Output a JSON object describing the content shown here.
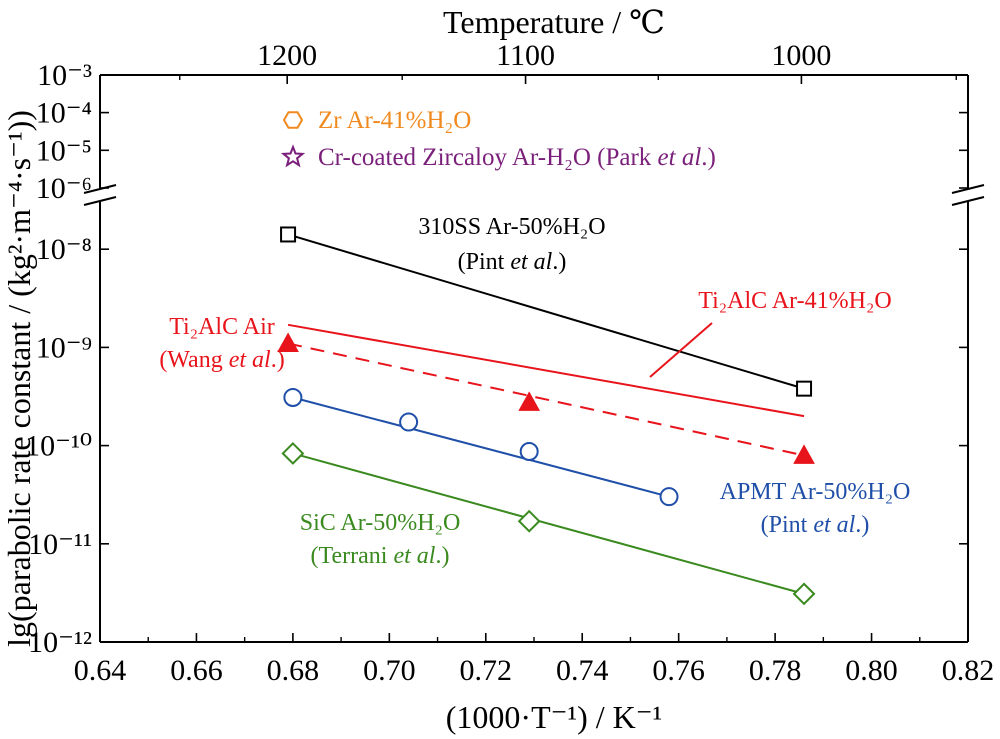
{
  "chart_data": {
    "type": "scatter",
    "title": "",
    "xlabel": "(1000·T⁻¹) / K⁻¹",
    "x2label": "Temperature / ℃",
    "ylabel": "lg(parabolic rate constant / (kg²·m⁻⁴·s⁻¹))",
    "xlim": [
      0.64,
      0.82
    ],
    "x_ticks": [
      "0.64",
      "0.66",
      "0.68",
      "0.70",
      "0.72",
      "0.74",
      "0.76",
      "0.78",
      "0.80",
      "0.82"
    ],
    "x2_ticks": [
      "1200",
      "1100",
      "1000"
    ],
    "y_scale": "log, broken axis",
    "ylim_lower": [
      -12,
      -7.6
    ],
    "ylim_upper": [
      -6,
      -3
    ],
    "y_ticks_lower": [
      "10⁻¹²",
      "10⁻¹¹",
      "10⁻¹⁰",
      "10⁻⁹",
      "10⁻⁸"
    ],
    "y_ticks_upper": [
      "10⁻⁶",
      "10⁻⁵",
      "10⁻⁴",
      "10⁻³"
    ],
    "grid": false,
    "series": [
      {
        "name": "310SS Ar-50%H₂O (Pint et al.)",
        "color": "#000000",
        "marker": "square-open",
        "points": [
          [
            0.679,
            -7.85
          ],
          [
            0.786,
            -9.42
          ]
        ],
        "fit": [
          [
            0.679,
            -7.85
          ],
          [
            0.786,
            -9.42
          ]
        ],
        "line_style": "solid"
      },
      {
        "name": "Ti₂AlC Ar-41%H₂O",
        "color": "#e8141b",
        "marker": "none",
        "fit": [
          [
            0.679,
            -8.77
          ],
          [
            0.786,
            -9.7
          ]
        ],
        "line_style": "solid"
      },
      {
        "name": "Ti₂AlC Air (Wang et al.)",
        "color": "#e8141b",
        "marker": "triangle-filled",
        "points": [
          [
            0.679,
            -8.96
          ],
          [
            0.729,
            -9.56
          ],
          [
            0.786,
            -10.1
          ]
        ],
        "fit": [
          [
            0.679,
            -8.96
          ],
          [
            0.786,
            -10.1
          ]
        ],
        "line_style": "dashed"
      },
      {
        "name": "APMT Ar-50%H₂O (Pint et al.)",
        "color": "#1f4fa8",
        "marker": "circle-open",
        "points": [
          [
            0.68,
            -9.51
          ],
          [
            0.704,
            -9.76
          ],
          [
            0.729,
            -10.06
          ],
          [
            0.758,
            -10.52
          ]
        ],
        "fit": [
          [
            0.68,
            -9.51
          ],
          [
            0.758,
            -10.52
          ]
        ],
        "line_style": "solid"
      },
      {
        "name": "SiC Ar-50%H₂O (Terrani et al.)",
        "color": "#3a8a1f",
        "marker": "diamond-open",
        "points": [
          [
            0.68,
            -10.08
          ],
          [
            0.729,
            -10.77
          ],
          [
            0.786,
            -11.51
          ]
        ],
        "fit": [
          [
            0.68,
            -10.08
          ],
          [
            0.786,
            -11.51
          ]
        ],
        "line_style": "solid"
      }
    ],
    "legend": [
      {
        "symbol": "hexagon-open",
        "color": "#f08a1e",
        "text": "Zr Ar-41%H₂O"
      },
      {
        "symbol": "star-open",
        "color": "#7a1f7a",
        "text_parts": [
          "Cr-coated Zircaloy Ar-H₂O (Park ",
          "et al",
          ".)"
        ]
      }
    ],
    "legend_position": "top-left",
    "annotations": [
      {
        "id": "ann-310ss",
        "color": "#000000",
        "lines": [
          [
            "310SS Ar-50%H₂O"
          ],
          [
            "(Pint ",
            "et al",
            ".)"
          ]
        ]
      },
      {
        "id": "ann-ti2alc-h2o",
        "color": "#e8141b",
        "lines": [
          [
            "Ti₂AlC Ar-41%H₂O"
          ]
        ]
      },
      {
        "id": "ann-ti2alc-air",
        "color": "#e8141b",
        "lines": [
          [
            "Ti₂AlC Air"
          ],
          [
            "(Wang ",
            "et al",
            ".)"
          ]
        ]
      },
      {
        "id": "ann-apmt",
        "color": "#1f4fa8",
        "lines": [
          [
            "APMT Ar-50%H₂O"
          ],
          [
            "(Pint ",
            "et al",
            ".)"
          ]
        ]
      },
      {
        "id": "ann-sic",
        "color": "#3a8a1f",
        "lines": [
          [
            "SiC Ar-50%H₂O"
          ],
          [
            "(Terrani ",
            "et al",
            ".)"
          ]
        ]
      }
    ]
  }
}
